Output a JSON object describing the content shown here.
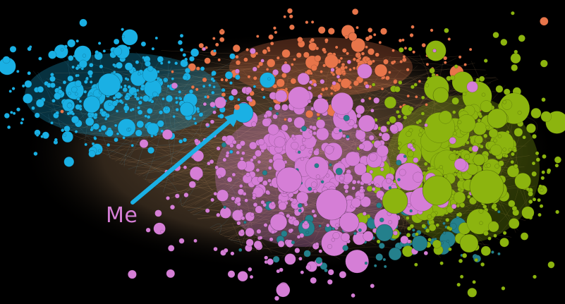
{
  "annotation": {
    "label": "Me"
  },
  "colors": {
    "background": "#000000",
    "cluster_blue": "#1ab0e4",
    "cluster_orange": "#e8754a",
    "cluster_pink": "#d57ed6",
    "cluster_green": "#8cb40f",
    "cluster_teal": "#24808c",
    "edges": "#c99868",
    "arrow": "#1ab0e4",
    "label": "#d57ed6"
  }
}
